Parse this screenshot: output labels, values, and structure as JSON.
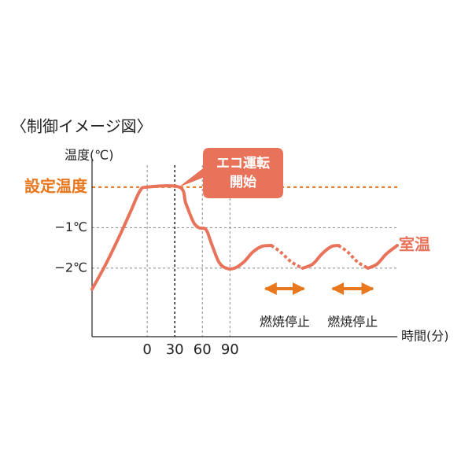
{
  "chart_data": {
    "type": "line",
    "title": "〈制御イメージ図〉",
    "y_label": "温度(℃)",
    "x_label": "時間(分)",
    "x": [
      -60,
      -45,
      -30,
      -18,
      -8,
      0,
      35,
      42,
      50,
      56,
      64,
      70,
      78,
      86,
      95,
      105,
      115,
      125,
      135,
      145,
      157,
      169,
      180,
      190,
      200,
      208,
      218,
      229,
      240,
      250,
      260,
      272
    ],
    "series": [
      {
        "name": "室温",
        "color": "#e8735a",
        "values": [
          -2.52,
          -1.9,
          -1.2,
          -0.6,
          -0.1,
          0,
          0,
          -0.4,
          -0.85,
          -1.0,
          -1.05,
          -1.4,
          -1.85,
          -2.0,
          -2.0,
          -1.85,
          -1.6,
          -1.46,
          -1.44,
          null,
          null,
          -2.0,
          -1.9,
          -1.65,
          -1.47,
          -1.44,
          null,
          null,
          -2.0,
          -1.9,
          -1.65,
          -1.44
        ]
      },
      {
        "color": "#e8735a",
        "dashed": true,
        "values": [
          null,
          null,
          null,
          null,
          null,
          null,
          null,
          null,
          null,
          null,
          null,
          null,
          null,
          null,
          null,
          null,
          null,
          null,
          -1.44,
          -1.6,
          -1.85,
          -2.0,
          null,
          null,
          null,
          -1.44,
          -1.6,
          -1.85,
          -2.0,
          null,
          null,
          null
        ]
      }
    ],
    "xlim": [
      -60,
      272
    ],
    "ylim": [
      -3.69,
      0.54
    ],
    "xticks": [
      0,
      30,
      60,
      90
    ],
    "yticks": [
      {
        "value": 0,
        "label": "設定温度"
      },
      {
        "value": -1,
        "label": "−1℃"
      },
      {
        "value": -2,
        "label": "−2℃"
      }
    ],
    "setpoint_color": "#e8771e",
    "callout": {
      "lines": [
        "エコ運転",
        "開始"
      ],
      "x": 30,
      "y": 0,
      "color": "#e8735a"
    },
    "burn_stops": [
      {
        "label": "燃焼停止",
        "x_range": [
          126,
          173
        ]
      },
      {
        "label": "燃焼停止",
        "x_range": [
          199,
          248
        ]
      }
    ],
    "arrow_color": "#e8771e"
  }
}
